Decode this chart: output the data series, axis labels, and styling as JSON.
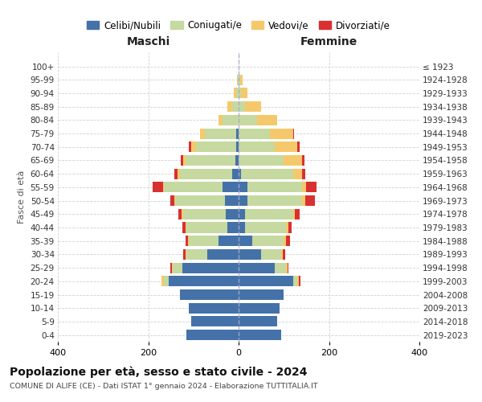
{
  "age_groups": [
    "0-4",
    "5-9",
    "10-14",
    "15-19",
    "20-24",
    "25-29",
    "30-34",
    "35-39",
    "40-44",
    "45-49",
    "50-54",
    "55-59",
    "60-64",
    "65-69",
    "70-74",
    "75-79",
    "80-84",
    "85-89",
    "90-94",
    "95-99",
    "100+"
  ],
  "birth_years": [
    "2019-2023",
    "2014-2018",
    "2009-2013",
    "2004-2008",
    "1999-2003",
    "1994-1998",
    "1989-1993",
    "1984-1988",
    "1979-1983",
    "1974-1978",
    "1969-1973",
    "1964-1968",
    "1959-1963",
    "1954-1958",
    "1949-1953",
    "1944-1948",
    "1939-1943",
    "1934-1938",
    "1929-1933",
    "1924-1928",
    "≤ 1923"
  ],
  "male": {
    "celibi": [
      115,
      105,
      110,
      130,
      155,
      125,
      70,
      45,
      25,
      28,
      30,
      35,
      15,
      8,
      5,
      5,
      0,
      0,
      0,
      0,
      0
    ],
    "coniugati": [
      0,
      0,
      0,
      0,
      10,
      20,
      45,
      65,
      90,
      95,
      110,
      130,
      115,
      110,
      90,
      70,
      35,
      15,
      5,
      2,
      0
    ],
    "vedovi": [
      0,
      0,
      0,
      0,
      5,
      3,
      2,
      2,
      2,
      3,
      3,
      3,
      5,
      5,
      10,
      10,
      10,
      10,
      5,
      2,
      0
    ],
    "divorziati": [
      0,
      0,
      0,
      0,
      0,
      3,
      5,
      5,
      8,
      8,
      8,
      22,
      8,
      5,
      5,
      0,
      0,
      0,
      0,
      0,
      0
    ]
  },
  "female": {
    "nubili": [
      95,
      85,
      90,
      100,
      120,
      80,
      50,
      30,
      15,
      15,
      20,
      20,
      5,
      0,
      0,
      0,
      0,
      0,
      0,
      0,
      0
    ],
    "coniugate": [
      0,
      0,
      0,
      0,
      10,
      25,
      45,
      70,
      90,
      105,
      120,
      120,
      115,
      100,
      80,
      70,
      40,
      15,
      5,
      3,
      0
    ],
    "vedove": [
      0,
      0,
      0,
      0,
      3,
      3,
      3,
      5,
      5,
      5,
      8,
      10,
      20,
      40,
      50,
      50,
      45,
      35,
      15,
      5,
      0
    ],
    "divorziate": [
      0,
      0,
      0,
      0,
      3,
      3,
      5,
      8,
      8,
      10,
      20,
      22,
      8,
      5,
      5,
      3,
      0,
      0,
      0,
      0,
      0
    ]
  },
  "colors": {
    "celibi": "#4472a8",
    "coniugati": "#c5d9a0",
    "vedovi": "#f5c96b",
    "divorziati": "#d93030"
  },
  "xlim": 400,
  "title": "Popolazione per età, sesso e stato civile - 2024",
  "subtitle": "COMUNE DI ALIFE (CE) - Dati ISTAT 1° gennaio 2024 - Elaborazione TUTTITALIA.IT",
  "ylabel_left": "Fasce di età",
  "xlabel_male": "Maschi",
  "xlabel_female": "Femmine",
  "legend_labels": [
    "Celibi/Nubili",
    "Coniugati/e",
    "Vedovi/e",
    "Divorziati/e"
  ],
  "background_color": "#ffffff",
  "grid_color": "#cccccc"
}
